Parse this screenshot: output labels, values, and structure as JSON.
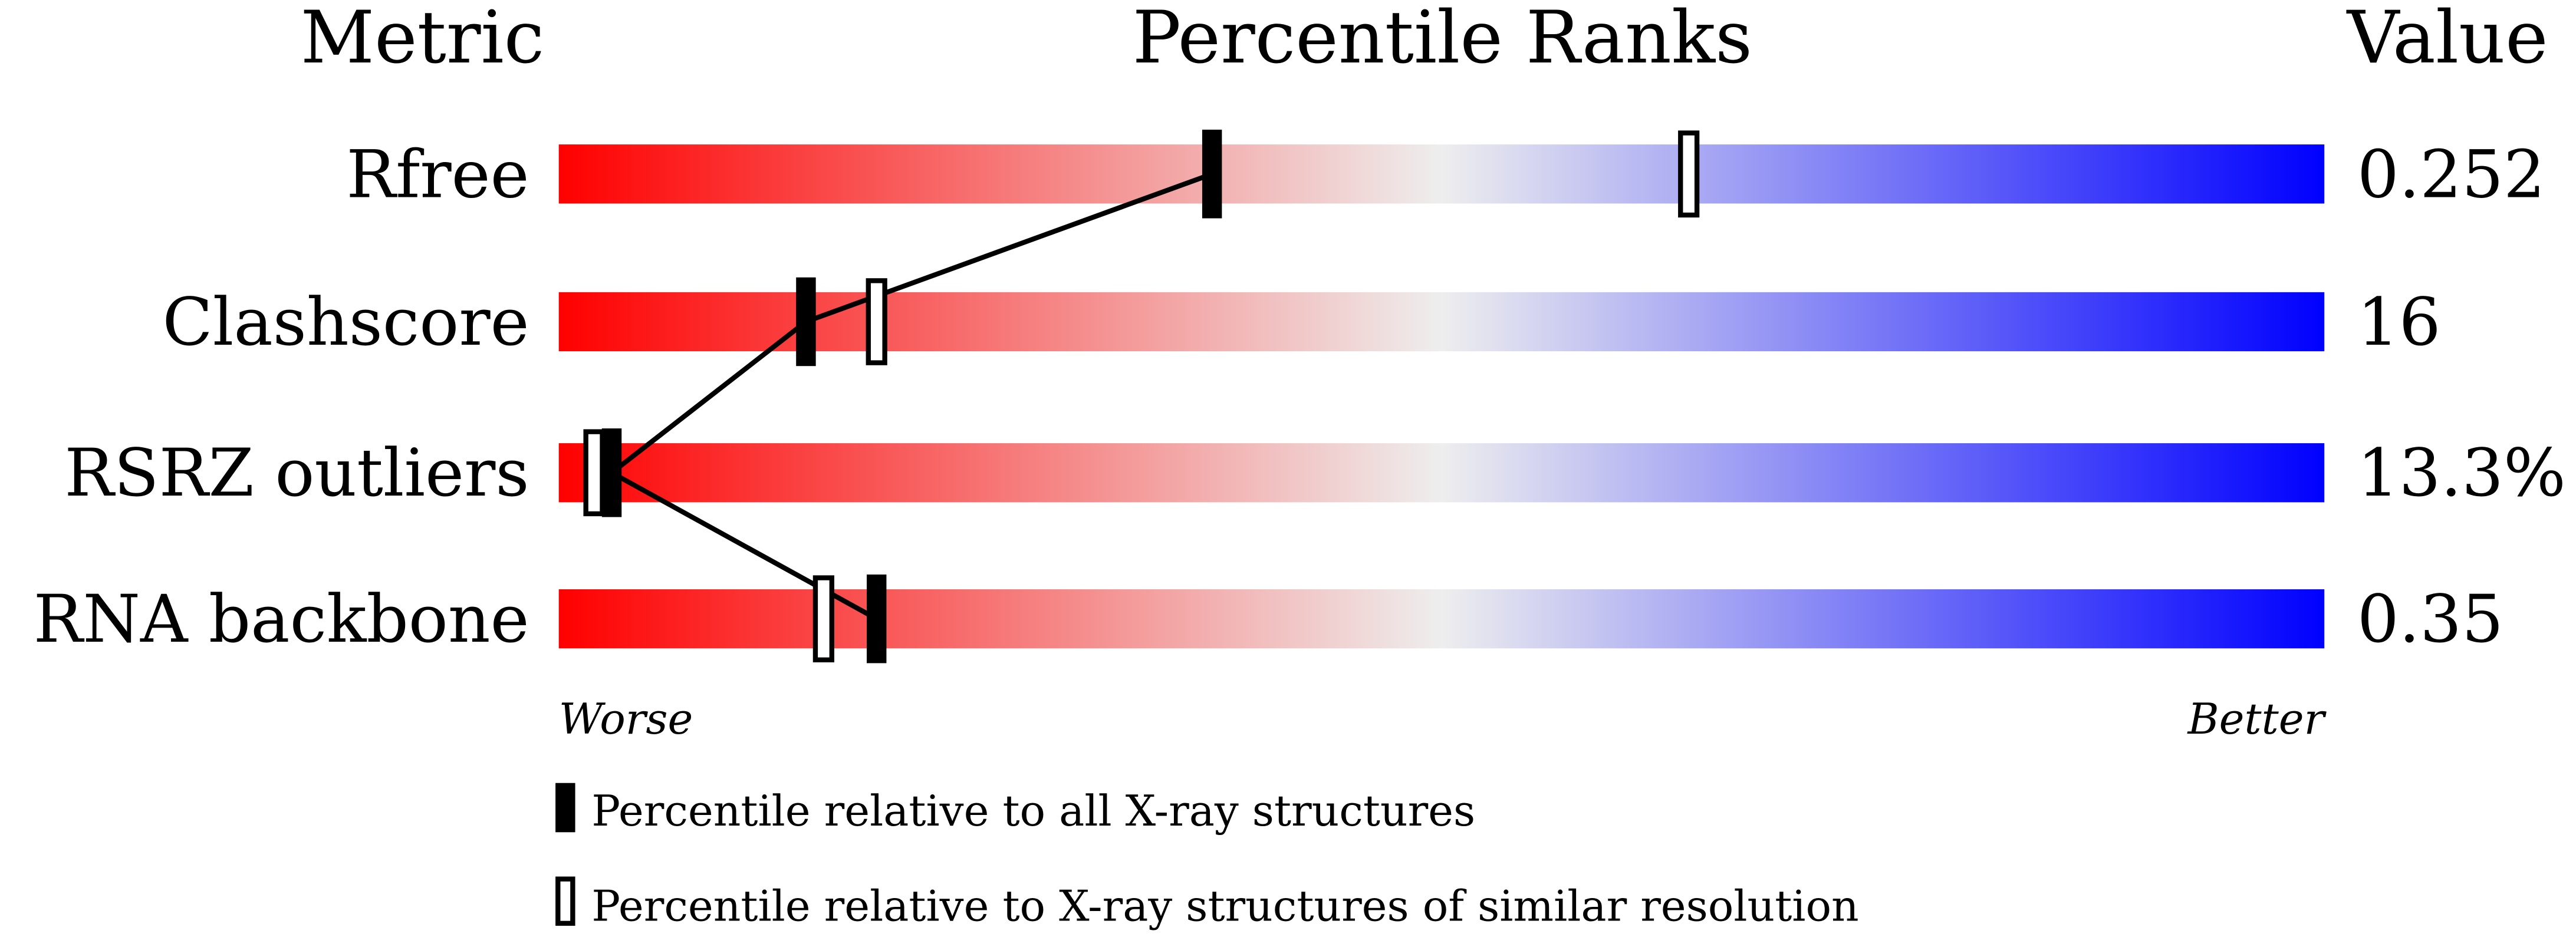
{
  "chart_data": {
    "type": "percentile",
    "header": {
      "metric": "Metric",
      "ranks": "Percentile Ranks",
      "value": "Value"
    },
    "categories": [
      "Rfree",
      "Clashscore",
      "RSRZ outliers",
      "RNA backbone"
    ],
    "xlim": [
      0,
      100
    ],
    "series": [
      {
        "name": "Percentile relative to all X-ray structures",
        "color": "#000000",
        "values": [
          37,
          14,
          3,
          18
        ]
      },
      {
        "name": "Percentile relative to X-ray structures of similar resolution",
        "color": "#ffffff",
        "values": [
          64,
          18,
          2,
          15
        ]
      }
    ],
    "metric_values": {
      "values": [
        0.252,
        16,
        13.3,
        0.35
      ],
      "value_labels": [
        "0.252",
        "16",
        "13.3%",
        "0.35"
      ]
    },
    "worse": "Worse",
    "better": "Better",
    "gradient": [
      "#ff0000",
      "#eeeeee",
      "#0000ff"
    ]
  }
}
